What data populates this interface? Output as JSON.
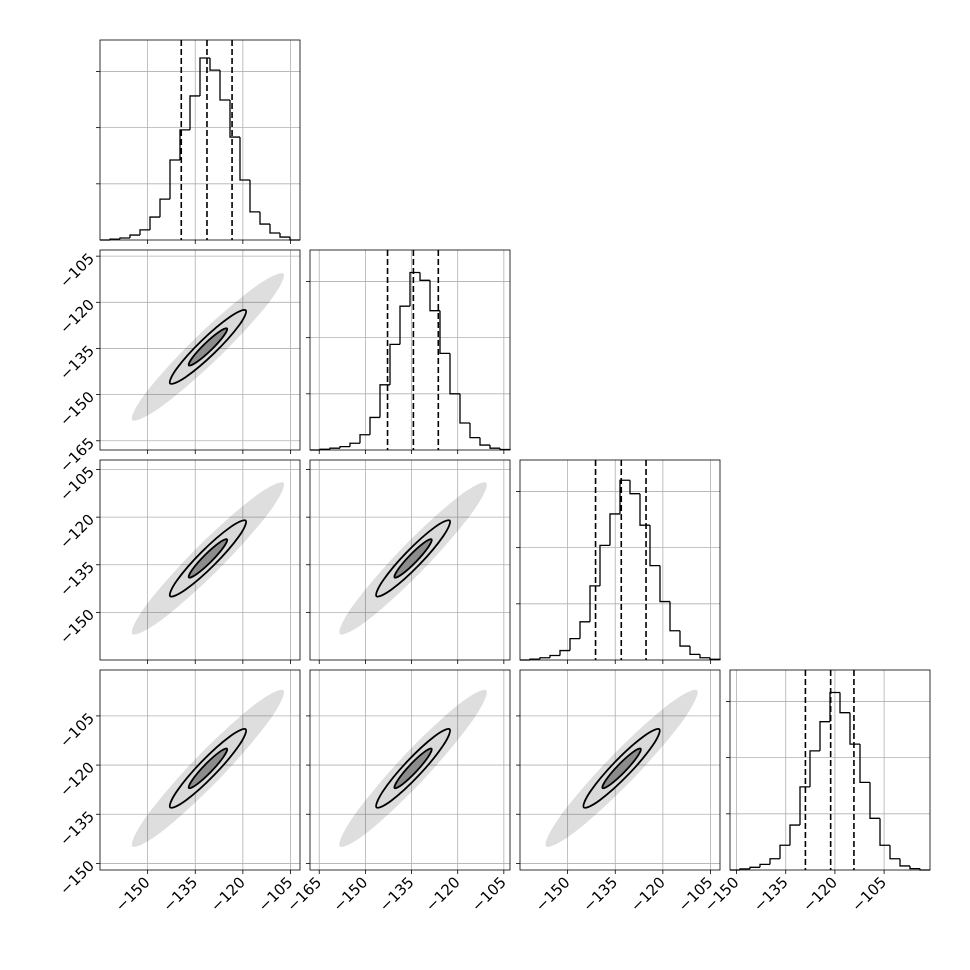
{
  "chart_data": {
    "type": "corner",
    "params": [
      {
        "lim": [
          -165,
          -102
        ],
        "ticks": [
          {
            "value": -150,
            "label": "−150"
          },
          {
            "value": -135,
            "label": "−135"
          },
          {
            "value": -120,
            "label": "−120"
          },
          {
            "value": -105,
            "label": "−105"
          }
        ],
        "bins": [
          -165,
          -161.85,
          -158.7,
          -155.55,
          -152.4,
          -149.25,
          -146.1,
          -142.95,
          -139.8,
          -136.65,
          -133.5,
          -130.35,
          -127.2,
          -124.05,
          -120.9,
          -117.75,
          -114.6,
          -111.45,
          -108.3,
          -105.15,
          -102
        ],
        "counts": [
          0,
          4,
          9,
          22,
          45,
          102,
          182,
          356,
          490,
          641,
          810,
          756,
          623,
          458,
          267,
          125,
          71,
          31,
          13,
          0
        ],
        "quantiles": [
          -139.4,
          -131.3,
          -123.4
        ]
      },
      {
        "lim": [
          -168,
          -103
        ],
        "ticks": [
          {
            "value": -165,
            "label": "−165"
          },
          {
            "value": -150,
            "label": "−150"
          },
          {
            "value": -135,
            "label": "−135"
          },
          {
            "value": -120,
            "label": "−120"
          },
          {
            "value": -105,
            "label": "−105"
          }
        ],
        "bins": [
          -168,
          -164.75,
          -161.5,
          -158.25,
          -155,
          -151.75,
          -148.5,
          -145.25,
          -142,
          -138.75,
          -135.5,
          -132.25,
          -129,
          -125.75,
          -122.5,
          -119.25,
          -116,
          -112.75,
          -109.5,
          -106.25,
          -103
        ],
        "counts": [
          0,
          3,
          8,
          15,
          30,
          68,
          145,
          290,
          470,
          640,
          790,
          755,
          620,
          430,
          250,
          120,
          55,
          22,
          8,
          2
        ],
        "quantiles": [
          -142.8,
          -134.4,
          -126.3
        ]
      },
      {
        "lim": [
          -165,
          -102
        ],
        "ticks": [
          {
            "value": -150,
            "label": "−150"
          },
          {
            "value": -135,
            "label": "−135"
          },
          {
            "value": -120,
            "label": "−120"
          },
          {
            "value": -105,
            "label": "−105"
          }
        ],
        "bins": [
          -165,
          -161.85,
          -158.7,
          -155.55,
          -152.4,
          -149.25,
          -146.1,
          -142.95,
          -139.8,
          -136.65,
          -133.5,
          -130.35,
          -127.2,
          -124.05,
          -120.9,
          -117.75,
          -114.6,
          -111.45,
          -108.3,
          -105.15,
          -102
        ],
        "counts": [
          0,
          4,
          10,
          20,
          42,
          95,
          170,
          330,
          510,
          650,
          800,
          740,
          600,
          420,
          260,
          130,
          62,
          25,
          10,
          3
        ],
        "quantiles": [
          -141.2,
          -133.1,
          -125.3
        ]
      },
      {
        "lim": [
          -152,
          -91
        ],
        "ticks": [
          {
            "value": -150,
            "label": "−150"
          },
          {
            "value": -135,
            "label": "−135"
          },
          {
            "value": -120,
            "label": "−120"
          },
          {
            "value": -105,
            "label": "−105"
          }
        ],
        "bins": [
          -152,
          -148.95,
          -145.9,
          -142.85,
          -139.8,
          -136.75,
          -133.7,
          -130.65,
          -127.6,
          -124.55,
          -121.5,
          -118.45,
          -115.4,
          -112.35,
          -109.3,
          -106.25,
          -103.2,
          -100.15,
          -97.1,
          -94.05,
          -91
        ],
        "counts": [
          0,
          5,
          12,
          25,
          50,
          110,
          200,
          370,
          530,
          660,
          790,
          700,
          560,
          390,
          230,
          110,
          50,
          18,
          6,
          0
        ],
        "quantiles": [
          -129,
          -121.3,
          -114.2
        ]
      }
    ],
    "hist_ylim": [
      0,
      890
    ],
    "hist_yticks": [
      250,
      500,
      750
    ],
    "rows": [
      [
        [
          {
            "x": [
              -107.2,
              -116.6,
              -134.4,
              -150.2,
              -154.8,
              -145.4,
              -127.6,
              -111.8
            ],
            "y": [
              -110.7,
              -115.3,
              -131.1,
              -148.9,
              -158.3,
              -153.7,
              -137.9,
              -120.1
            ]
          },
          {
            "x": [
              -119.1,
              -124,
              -133,
              -140.8,
              -142.9,
              -138,
              -129,
              -121.2
            ],
            "y": [
              -122.6,
              -124.7,
              -132.5,
              -141.5,
              -146.4,
              -144.3,
              -136.5,
              -127.5
            ]
          },
          {
            "x": [
              -125,
              -127.5,
              -132,
              -135.9,
              -137,
              -134.5,
              -130,
              -126.1
            ],
            "y": [
              -128.5,
              -129.6,
              -133.5,
              -138,
              -140.5,
              -139.4,
              -135.5,
              -131
            ]
          }
        ]
      ],
      [
        [
          {
            "x": [
              -107.2,
              -116.6,
              -134.4,
              -150.2,
              -154.8,
              -145.4,
              -127.6,
              -111.8
            ],
            "y": [
              -109.2,
              -113.8,
              -129.6,
              -147.4,
              -156.8,
              -152.2,
              -136.4,
              -118.6
            ]
          },
          {
            "x": [
              -119.1,
              -124,
              -133,
              -140.8,
              -142.9,
              -138,
              -129,
              -121.2
            ],
            "y": [
              -121.1,
              -123.2,
              -131,
              -140,
              -144.9,
              -142.8,
              -135,
              -126
            ]
          },
          {
            "x": [
              -125,
              -127.5,
              -132,
              -135.9,
              -137,
              -134.5,
              -130,
              -126.1
            ],
            "y": [
              -127,
              -128.1,
              -132,
              -136.5,
              -139,
              -137.9,
              -134,
              -129.5
            ]
          }
        ],
        [
          {
            "x": [
              -110.7,
              -120.1,
              -137.9,
              -153.7,
              -158.3,
              -148.9,
              -131.1,
              -115.3
            ],
            "y": [
              -109.2,
              -113.8,
              -129.6,
              -147.4,
              -156.8,
              -152.2,
              -136.4,
              -118.6
            ]
          },
          {
            "x": [
              -122.6,
              -127.5,
              -136.5,
              -144.3,
              -146.4,
              -141.5,
              -132.5,
              -124.7
            ],
            "y": [
              -121.1,
              -123.2,
              -131,
              -140,
              -144.9,
              -142.8,
              -135,
              -126
            ]
          },
          {
            "x": [
              -128.5,
              -131,
              -135.5,
              -139.4,
              -140.5,
              -138,
              -133.5,
              -129.6
            ],
            "y": [
              -127,
              -128.1,
              -132,
              -136.5,
              -139,
              -137.9,
              -134,
              -129.5
            ]
          }
        ]
      ],
      [
        [
          {
            "x": [
              -107.2,
              -116.6,
              -134.4,
              -150.2,
              -154.8,
              -145.4,
              -127.6,
              -111.8
            ],
            "y": [
              -97.2,
              -101.8,
              -117.6,
              -135.4,
              -144.8,
              -140.2,
              -124.4,
              -106.6
            ]
          },
          {
            "x": [
              -119.1,
              -124,
              -133,
              -140.8,
              -142.9,
              -138,
              -129,
              -121.2
            ],
            "y": [
              -109.1,
              -111.2,
              -119,
              -128,
              -132.9,
              -130.8,
              -123,
              -114
            ]
          },
          {
            "x": [
              -125,
              -127.5,
              -132,
              -135.9,
              -137,
              -134.5,
              -130,
              -126.1
            ],
            "y": [
              -115,
              -116.1,
              -120,
              -124.5,
              -127,
              -125.9,
              -122,
              -117.5
            ]
          }
        ],
        [
          {
            "x": [
              -110.7,
              -120.1,
              -137.9,
              -153.7,
              -158.3,
              -148.9,
              -131.1,
              -115.3
            ],
            "y": [
              -97.2,
              -101.8,
              -117.6,
              -135.4,
              -144.8,
              -140.2,
              -124.4,
              -106.6
            ]
          },
          {
            "x": [
              -122.6,
              -127.5,
              -136.5,
              -144.3,
              -146.4,
              -141.5,
              -132.5,
              -124.7
            ],
            "y": [
              -109.1,
              -111.2,
              -119,
              -128,
              -132.9,
              -130.8,
              -123,
              -114
            ]
          },
          {
            "x": [
              -128.5,
              -131,
              -135.5,
              -139.4,
              -140.5,
              -138,
              -133.5,
              -129.6
            ],
            "y": [
              -115,
              -116.1,
              -120,
              -124.5,
              -127,
              -125.9,
              -122,
              -117.5
            ]
          }
        ],
        [
          {
            "x": [
              -109.2,
              -118.6,
              -136.4,
              -152.2,
              -156.8,
              -147.4,
              -129.6,
              -113.8
            ],
            "y": [
              -97.2,
              -101.8,
              -117.6,
              -135.4,
              -144.8,
              -140.2,
              -124.4,
              -106.6
            ]
          },
          {
            "x": [
              -121.1,
              -126,
              -135,
              -142.8,
              -144.9,
              -140,
              -131,
              -123.2
            ],
            "y": [
              -109.1,
              -111.2,
              -119,
              -128,
              -132.9,
              -130.8,
              -123,
              -114
            ]
          },
          {
            "x": [
              -127,
              -129.5,
              -134,
              -137.9,
              -139,
              -136.5,
              -132,
              -128.1
            ],
            "y": [
              -115,
              -116.1,
              -120,
              -124.5,
              -127,
              -125.9,
              -122,
              -117.5
            ]
          }
        ]
      ]
    ]
  }
}
